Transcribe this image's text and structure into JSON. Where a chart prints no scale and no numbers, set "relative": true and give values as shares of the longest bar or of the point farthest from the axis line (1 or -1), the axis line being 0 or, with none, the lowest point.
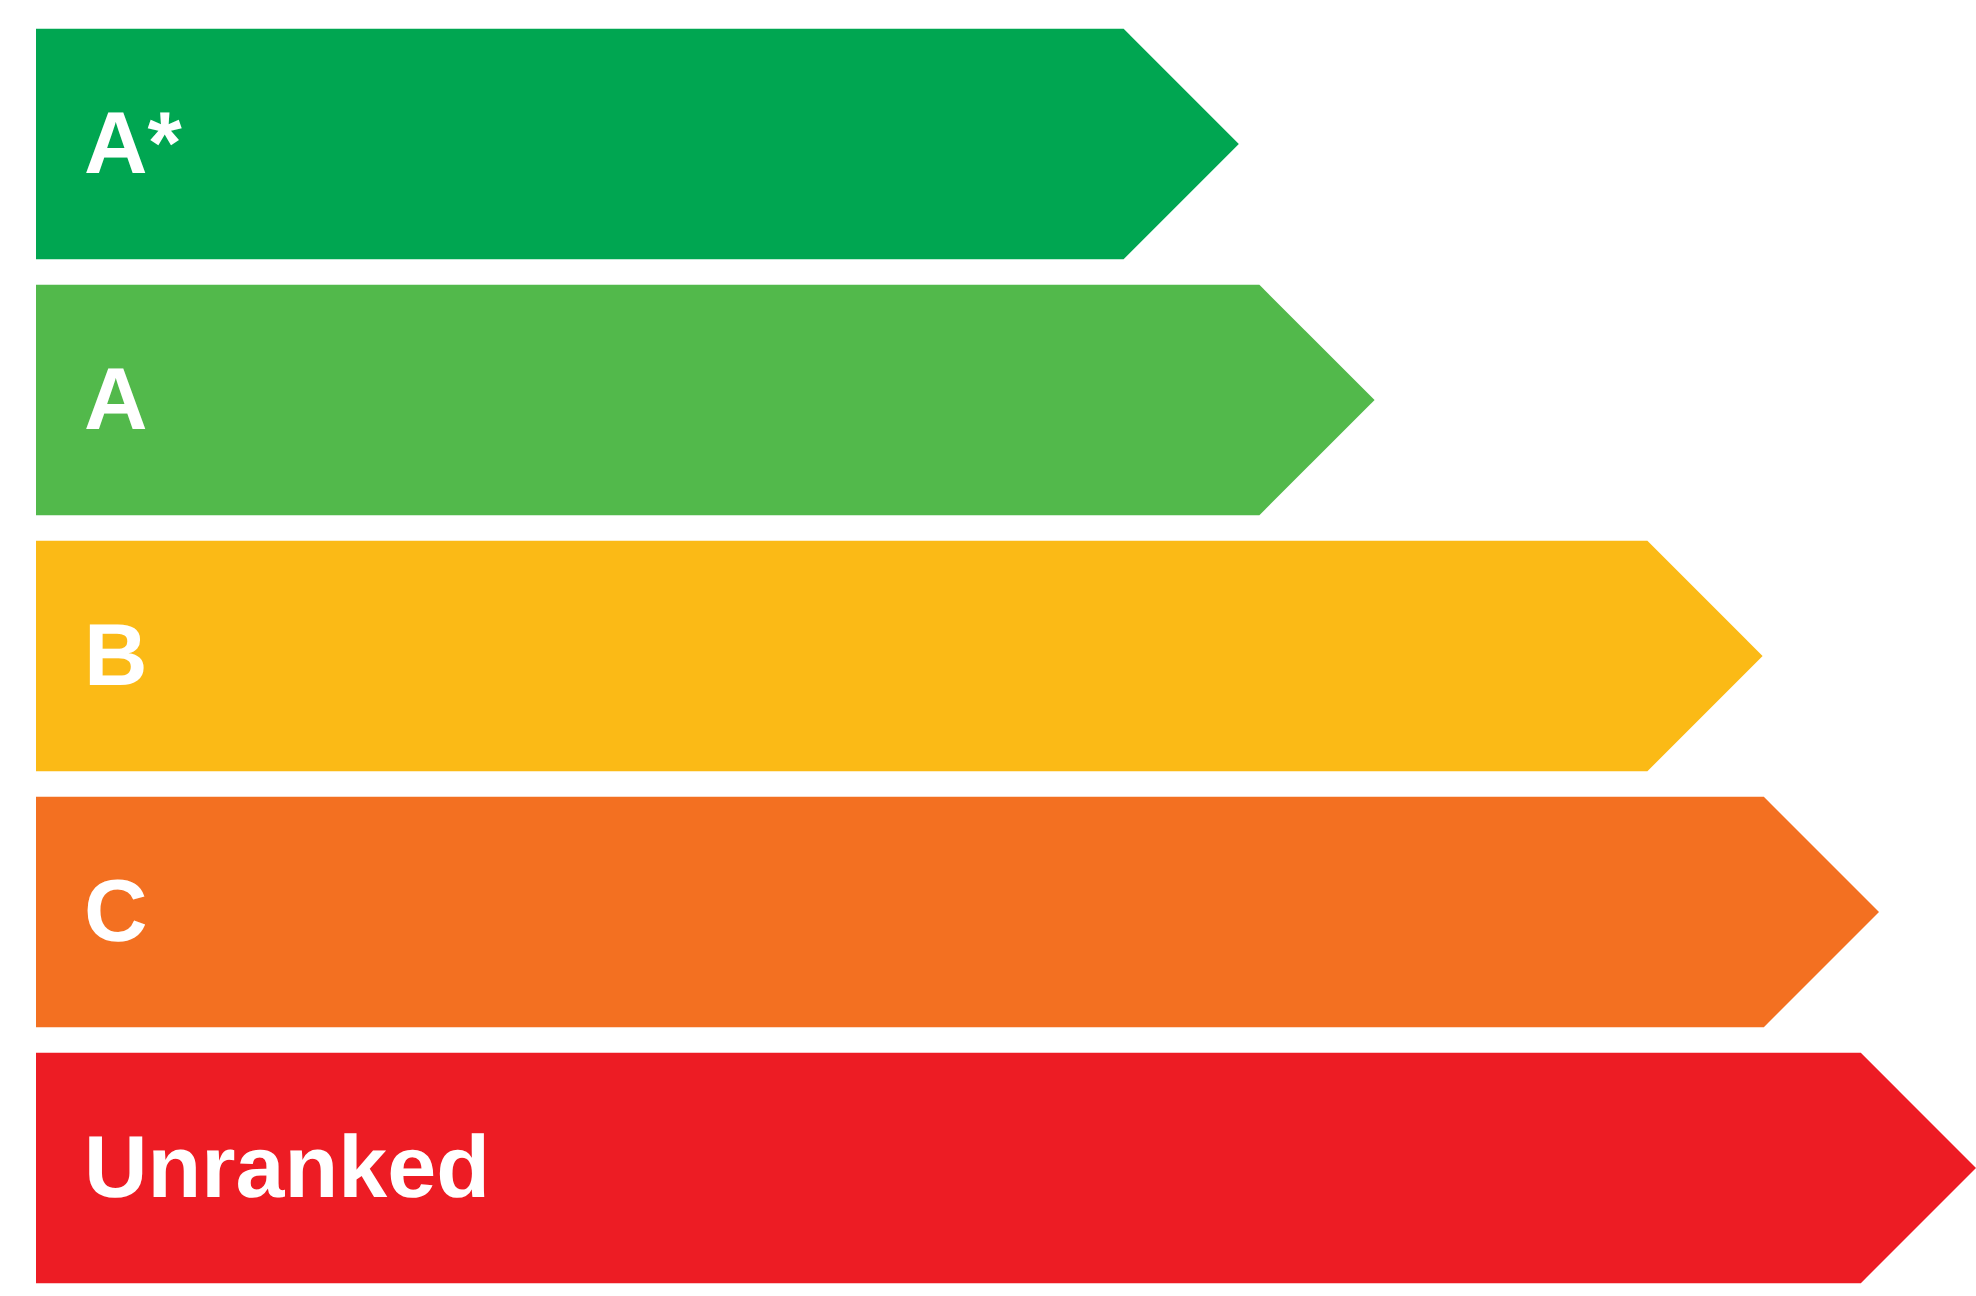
{
  "chart_data": {
    "type": "bar",
    "orientation": "horizontal",
    "relative": true,
    "categories": [
      "A*",
      "A",
      "B",
      "C",
      "Unranked"
    ],
    "values": [
      0.62,
      0.69,
      0.89,
      0.95,
      1
    ],
    "colors": [
      "#00a651",
      "#52b94b",
      "#fbba16",
      "#f37021",
      "#ed1c24"
    ]
  }
}
